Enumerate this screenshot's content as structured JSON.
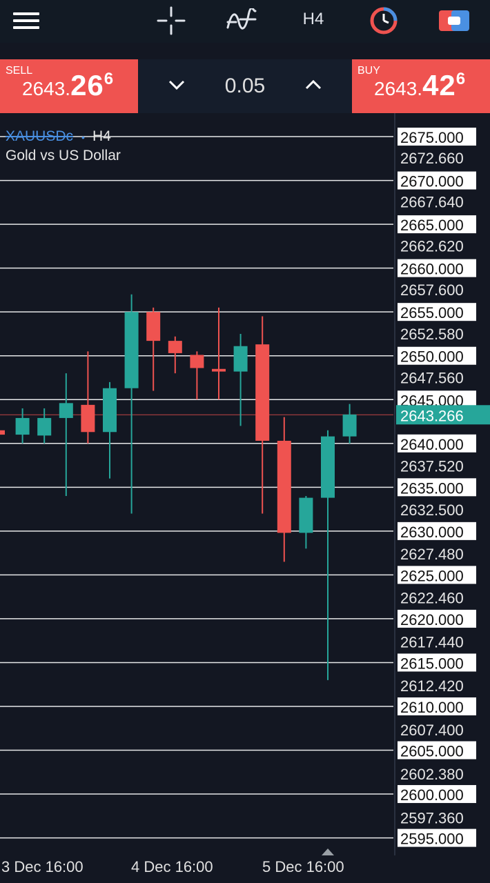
{
  "toolbar": {
    "timeframe_label": "H4",
    "icons": [
      "menu-icon",
      "crosshair-icon",
      "indicators-icon",
      "timeframe",
      "history-clock-icon",
      "trade-panel-icon"
    ]
  },
  "trade": {
    "sell_label": "SELL",
    "sell_price_small": "2643.",
    "sell_price_big": "26",
    "sell_price_sup": "6",
    "buy_label": "BUY",
    "buy_price_small": "2643.",
    "buy_price_big": "42",
    "buy_price_sup": "6",
    "lot_value": "0.05",
    "colors": {
      "sell": "#ef5350",
      "buy": "#ef5350"
    }
  },
  "symbol": {
    "ticker": "XAUUSDc",
    "dot": "•",
    "timeframe": "H4",
    "description": "Gold vs US Dollar"
  },
  "chart_data": {
    "type": "candlestick",
    "symbol": "XAUUSDc",
    "timeframe": "H4",
    "ylim": [
      2593.0,
      2677.68
    ],
    "y_ticks": [
      {
        "value": 2675.0,
        "label": "2675.000",
        "boxed": true
      },
      {
        "value": 2672.66,
        "label": "2672.660",
        "boxed": false
      },
      {
        "value": 2670.0,
        "label": "2670.000",
        "boxed": true
      },
      {
        "value": 2667.64,
        "label": "2667.640",
        "boxed": false
      },
      {
        "value": 2665.0,
        "label": "2665.000",
        "boxed": true
      },
      {
        "value": 2662.62,
        "label": "2662.620",
        "boxed": false
      },
      {
        "value": 2660.0,
        "label": "2660.000",
        "boxed": true
      },
      {
        "value": 2657.6,
        "label": "2657.600",
        "boxed": false
      },
      {
        "value": 2655.0,
        "label": "2655.000",
        "boxed": true
      },
      {
        "value": 2652.58,
        "label": "2652.580",
        "boxed": false
      },
      {
        "value": 2650.0,
        "label": "2650.000",
        "boxed": true
      },
      {
        "value": 2647.56,
        "label": "2647.560",
        "boxed": false
      },
      {
        "value": 2645.0,
        "label": "2645.000",
        "boxed": true
      },
      {
        "value": 2640.0,
        "label": "2640.000",
        "boxed": true
      },
      {
        "value": 2637.52,
        "label": "2637.520",
        "boxed": false
      },
      {
        "value": 2635.0,
        "label": "2635.000",
        "boxed": true
      },
      {
        "value": 2632.5,
        "label": "2632.500",
        "boxed": false
      },
      {
        "value": 2630.0,
        "label": "2630.000",
        "boxed": true
      },
      {
        "value": 2627.48,
        "label": "2627.480",
        "boxed": false
      },
      {
        "value": 2625.0,
        "label": "2625.000",
        "boxed": true
      },
      {
        "value": 2622.46,
        "label": "2622.460",
        "boxed": false
      },
      {
        "value": 2620.0,
        "label": "2620.000",
        "boxed": true
      },
      {
        "value": 2617.44,
        "label": "2617.440",
        "boxed": false
      },
      {
        "value": 2615.0,
        "label": "2615.000",
        "boxed": true
      },
      {
        "value": 2612.42,
        "label": "2612.420",
        "boxed": false
      },
      {
        "value": 2610.0,
        "label": "2610.000",
        "boxed": true
      },
      {
        "value": 2607.4,
        "label": "2607.400",
        "boxed": false
      },
      {
        "value": 2605.0,
        "label": "2605.000",
        "boxed": true
      },
      {
        "value": 2602.38,
        "label": "2602.380",
        "boxed": false
      },
      {
        "value": 2600.0,
        "label": "2600.000",
        "boxed": true
      },
      {
        "value": 2597.36,
        "label": "2597.360",
        "boxed": false
      },
      {
        "value": 2595.0,
        "label": "2595.000",
        "boxed": true
      }
    ],
    "current_price": {
      "value": 2643.266,
      "label": "2643.266"
    },
    "x_labels": [
      "3 Dec 16:00",
      "4 Dec 16:00",
      "5 Dec 16:00"
    ],
    "candles": [
      {
        "o": 2641.5,
        "h": 2648.0,
        "l": 2639.0,
        "c": 2641.0
      },
      {
        "o": 2641.0,
        "h": 2644.0,
        "l": 2640.0,
        "c": 2642.9
      },
      {
        "o": 2640.9,
        "h": 2644.0,
        "l": 2640.0,
        "c": 2642.9
      },
      {
        "o": 2642.9,
        "h": 2648.0,
        "l": 2634.0,
        "c": 2644.6
      },
      {
        "o": 2644.4,
        "h": 2650.5,
        "l": 2640.0,
        "c": 2641.3
      },
      {
        "o": 2641.3,
        "h": 2647.0,
        "l": 2636.0,
        "c": 2646.3
      },
      {
        "o": 2646.3,
        "h": 2657.0,
        "l": 2632.0,
        "c": 2655.0
      },
      {
        "o": 2655.0,
        "h": 2655.5,
        "l": 2646.0,
        "c": 2651.7
      },
      {
        "o": 2651.7,
        "h": 2652.2,
        "l": 2648.0,
        "c": 2650.3
      },
      {
        "o": 2650.1,
        "h": 2650.5,
        "l": 2645.0,
        "c": 2648.6
      },
      {
        "o": 2648.5,
        "h": 2655.5,
        "l": 2645.0,
        "c": 2648.2
      },
      {
        "o": 2648.2,
        "h": 2652.5,
        "l": 2642.0,
        "c": 2651.1
      },
      {
        "o": 2651.3,
        "h": 2654.5,
        "l": 2632.0,
        "c": 2640.3
      },
      {
        "o": 2640.3,
        "h": 2643.0,
        "l": 2626.5,
        "c": 2629.8
      },
      {
        "o": 2629.8,
        "h": 2634.0,
        "l": 2628.0,
        "c": 2633.8
      },
      {
        "o": 2633.8,
        "h": 2641.5,
        "l": 2613.0,
        "c": 2640.8
      },
      {
        "o": 2640.8,
        "h": 2644.5,
        "l": 2640.0,
        "c": 2643.3
      }
    ],
    "colors": {
      "bull": "#26a69a",
      "bear": "#ef5350",
      "grid": "#ffffff",
      "bg": "#131722"
    }
  }
}
